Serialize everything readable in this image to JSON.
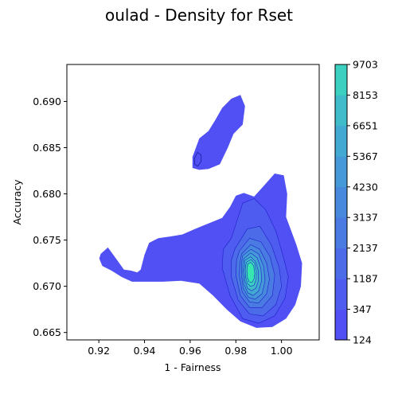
{
  "chart_data": {
    "type": "density_contour",
    "title": "oulad - Density for Rset",
    "xlabel": "1 - Fairness",
    "ylabel": "Accuracy",
    "xlim": [
      0.906,
      1.0165
    ],
    "ylim": [
      0.6642,
      0.694
    ],
    "x_ticks": [
      0.92,
      0.94,
      0.96,
      0.98,
      1.0
    ],
    "x_tick_labels": [
      "0.92",
      "0.94",
      "0.96",
      "0.98",
      "1.00"
    ],
    "y_ticks": [
      0.665,
      0.67,
      0.675,
      0.68,
      0.685,
      0.69
    ],
    "y_tick_labels": [
      "0.665",
      "0.670",
      "0.675",
      "0.680",
      "0.685",
      "0.690"
    ],
    "colorbar": {
      "levels": [
        124,
        347,
        1187,
        2137,
        3137,
        4230,
        5367,
        6651,
        8153,
        9703
      ],
      "tick_labels": [
        "124",
        "347",
        "1187",
        "2137",
        "3137",
        "4230",
        "5367",
        "6651",
        "8153",
        "9703"
      ],
      "colors": [
        "#5050f5",
        "#4e5cf0",
        "#4c6be9",
        "#4a7be3",
        "#4789dd",
        "#4599d8",
        "#42a9d2",
        "#3fbbca",
        "#3bd0bf",
        "#36e8b0"
      ]
    },
    "peak": {
      "x": 0.987,
      "y": 0.6718,
      "value": 9703
    },
    "regions": [
      {
        "level": 124,
        "outline": [
          [
            0.9208,
            0.6735
          ],
          [
            0.924,
            0.6742
          ],
          [
            0.9275,
            0.673
          ],
          [
            0.931,
            0.6718
          ],
          [
            0.934,
            0.6717
          ],
          [
            0.9368,
            0.6715
          ],
          [
            0.9383,
            0.6718
          ],
          [
            0.94,
            0.6734
          ],
          [
            0.942,
            0.6747
          ],
          [
            0.946,
            0.6752
          ],
          [
            0.9515,
            0.6754
          ],
          [
            0.9565,
            0.6756
          ],
          [
            0.962,
            0.6762
          ],
          [
            0.968,
            0.6768
          ],
          [
            0.974,
            0.6774
          ],
          [
            0.9775,
            0.6786
          ],
          [
            0.98,
            0.6798
          ],
          [
            0.9835,
            0.6801
          ],
          [
            0.988,
            0.6797
          ],
          [
            0.992,
            0.6808
          ],
          [
            0.997,
            0.6822
          ],
          [
            1.001,
            0.682
          ],
          [
            1.0025,
            0.68
          ],
          [
            1.002,
            0.6775
          ],
          [
            1.0065,
            0.6745
          ],
          [
            1.009,
            0.6725
          ],
          [
            1.0085,
            0.67
          ],
          [
            1.006,
            0.668
          ],
          [
            1.002,
            0.6665
          ],
          [
            0.996,
            0.6656
          ],
          [
            0.989,
            0.6655
          ],
          [
            0.982,
            0.6662
          ],
          [
            0.976,
            0.6675
          ],
          [
            0.97,
            0.669
          ],
          [
            0.964,
            0.6703
          ],
          [
            0.956,
            0.6706
          ],
          [
            0.948,
            0.6705
          ],
          [
            0.942,
            0.6705
          ],
          [
            0.939,
            0.6705
          ],
          [
            0.9345,
            0.6705
          ],
          [
            0.93,
            0.671
          ],
          [
            0.9255,
            0.6717
          ],
          [
            0.9215,
            0.6722
          ],
          [
            0.9202,
            0.673
          ]
        ]
      },
      {
        "level": 124,
        "outline": [
          [
            0.961,
            0.684
          ],
          [
            0.964,
            0.686
          ],
          [
            0.968,
            0.6868
          ],
          [
            0.971,
            0.688
          ],
          [
            0.974,
            0.6893
          ],
          [
            0.978,
            0.6903
          ],
          [
            0.982,
            0.6907
          ],
          [
            0.984,
            0.6895
          ],
          [
            0.983,
            0.6875
          ],
          [
            0.979,
            0.6865
          ],
          [
            0.9765,
            0.685
          ],
          [
            0.973,
            0.6832
          ],
          [
            0.968,
            0.6827
          ],
          [
            0.964,
            0.6826
          ],
          [
            0.961,
            0.6828
          ]
        ]
      },
      {
        "level": 347,
        "outline": [
          [
            0.978,
            0.6752
          ],
          [
            0.983,
            0.679
          ],
          [
            0.988,
            0.6795
          ],
          [
            0.993,
            0.6783
          ],
          [
            0.9975,
            0.676
          ],
          [
            1.001,
            0.673
          ],
          [
            1.003,
            0.671
          ],
          [
            1.0015,
            0.6687
          ],
          [
            0.997,
            0.6668
          ],
          [
            0.99,
            0.666
          ],
          [
            0.983,
            0.6665
          ],
          [
            0.9775,
            0.669
          ],
          [
            0.974,
            0.672
          ],
          [
            0.9745,
            0.674
          ]
        ]
      },
      {
        "level": 1187,
        "outline": [
          [
            0.9795,
            0.674
          ],
          [
            0.985,
            0.6762
          ],
          [
            0.9905,
            0.6765
          ],
          [
            0.9955,
            0.6745
          ],
          [
            0.999,
            0.672
          ],
          [
            1.0,
            0.67
          ],
          [
            0.9975,
            0.668
          ],
          [
            0.992,
            0.6668
          ],
          [
            0.986,
            0.667
          ],
          [
            0.981,
            0.6685
          ],
          [
            0.978,
            0.671
          ],
          [
            0.978,
            0.6728
          ]
        ]
      },
      {
        "level": 2137,
        "outline": [
          [
            0.9815,
            0.6738
          ],
          [
            0.986,
            0.6752
          ],
          [
            0.991,
            0.6748
          ],
          [
            0.995,
            0.6732
          ],
          [
            0.997,
            0.6712
          ],
          [
            0.996,
            0.669
          ],
          [
            0.9915,
            0.6677
          ],
          [
            0.986,
            0.6677
          ],
          [
            0.982,
            0.669
          ],
          [
            0.98,
            0.6712
          ],
          [
            0.9803,
            0.6728
          ]
        ]
      },
      {
        "level": 3137,
        "outline": [
          [
            0.9825,
            0.6735
          ],
          [
            0.9865,
            0.6745
          ],
          [
            0.9905,
            0.674
          ],
          [
            0.9935,
            0.6725
          ],
          [
            0.9947,
            0.6708
          ],
          [
            0.9935,
            0.6692
          ],
          [
            0.99,
            0.6682
          ],
          [
            0.986,
            0.6683
          ],
          [
            0.9828,
            0.6694
          ],
          [
            0.9815,
            0.6712
          ],
          [
            0.9818,
            0.6726
          ]
        ]
      },
      {
        "level": 4230,
        "outline": [
          [
            0.983,
            0.6733
          ],
          [
            0.9866,
            0.674
          ],
          [
            0.99,
            0.6735
          ],
          [
            0.9922,
            0.6721
          ],
          [
            0.9928,
            0.6706
          ],
          [
            0.9915,
            0.6692
          ],
          [
            0.9885,
            0.6686
          ],
          [
            0.9855,
            0.6688
          ],
          [
            0.9832,
            0.6698
          ],
          [
            0.9824,
            0.6713
          ],
          [
            0.9825,
            0.6726
          ]
        ]
      },
      {
        "level": 5367,
        "outline": [
          [
            0.9835,
            0.673
          ],
          [
            0.9865,
            0.6736
          ],
          [
            0.9893,
            0.6731
          ],
          [
            0.991,
            0.6719
          ],
          [
            0.9913,
            0.6706
          ],
          [
            0.99,
            0.6695
          ],
          [
            0.9876,
            0.669
          ],
          [
            0.9852,
            0.6693
          ],
          [
            0.9836,
            0.6702
          ],
          [
            0.983,
            0.6714
          ],
          [
            0.9831,
            0.6724
          ]
        ]
      },
      {
        "level": 6651,
        "outline": [
          [
            0.984,
            0.6728
          ],
          [
            0.9865,
            0.6732
          ],
          [
            0.9886,
            0.6727
          ],
          [
            0.9898,
            0.6717
          ],
          [
            0.9899,
            0.6706
          ],
          [
            0.9888,
            0.6698
          ],
          [
            0.9869,
            0.6695
          ],
          [
            0.9851,
            0.6698
          ],
          [
            0.984,
            0.6706
          ],
          [
            0.9836,
            0.6716
          ]
        ]
      },
      {
        "level": 8153,
        "outline": [
          [
            0.9846,
            0.6726
          ],
          [
            0.9866,
            0.6729
          ],
          [
            0.9882,
            0.6725
          ],
          [
            0.989,
            0.6716
          ],
          [
            0.9889,
            0.6707
          ],
          [
            0.9879,
            0.6701
          ],
          [
            0.9864,
            0.67
          ],
          [
            0.9851,
            0.6703
          ],
          [
            0.9843,
            0.671
          ],
          [
            0.9841,
            0.6719
          ]
        ]
      },
      {
        "level": 9703,
        "outline": [
          [
            0.9852,
            0.6724
          ],
          [
            0.9866,
            0.6726
          ],
          [
            0.9878,
            0.6722
          ],
          [
            0.9883,
            0.6714
          ],
          [
            0.988,
            0.6708
          ],
          [
            0.987,
            0.6704
          ],
          [
            0.9858,
            0.6705
          ],
          [
            0.985,
            0.671
          ],
          [
            0.9848,
            0.6717
          ]
        ]
      }
    ],
    "contour_lines": [
      {
        "outline": [
          [
            0.9618,
            0.6838
          ],
          [
            0.9632,
            0.6845
          ],
          [
            0.9648,
            0.6842
          ],
          [
            0.9648,
            0.6835
          ],
          [
            0.9633,
            0.683
          ],
          [
            0.962,
            0.6832
          ]
        ]
      }
    ]
  }
}
